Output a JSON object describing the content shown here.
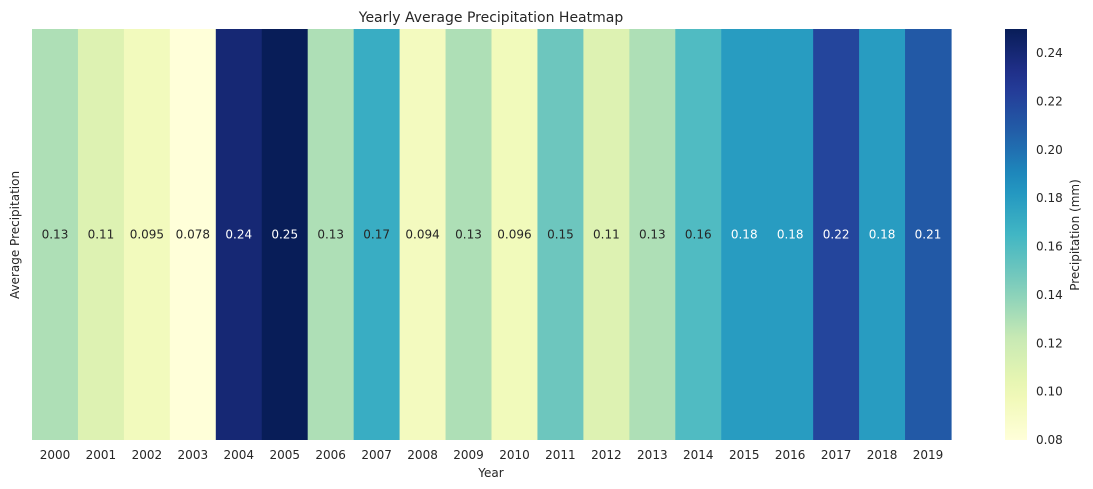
{
  "chart_data": {
    "type": "heatmap",
    "title": "Yearly Average Precipitation Heatmap",
    "xlabel": "Year",
    "ylabel": "Average Precipitation",
    "colorbar_label": "Precipitation (mm)",
    "colormap": "YlGnBu",
    "color_range": [
      0.08,
      0.25
    ],
    "colorbar_ticks": [
      "0.08",
      "0.10",
      "0.12",
      "0.14",
      "0.16",
      "0.18",
      "0.20",
      "0.22",
      "0.24"
    ],
    "categories": [
      "2000",
      "2001",
      "2002",
      "2003",
      "2004",
      "2005",
      "2006",
      "2007",
      "2008",
      "2009",
      "2010",
      "2011",
      "2012",
      "2013",
      "2014",
      "2015",
      "2016",
      "2017",
      "2018",
      "2019"
    ],
    "values": [
      0.13,
      0.11,
      0.095,
      0.078,
      0.24,
      0.25,
      0.13,
      0.17,
      0.094,
      0.13,
      0.096,
      0.15,
      0.11,
      0.13,
      0.16,
      0.18,
      0.18,
      0.22,
      0.18,
      0.21
    ],
    "cell_labels": [
      "0.13",
      "0.11",
      "0.095",
      "0.078",
      "0.24",
      "0.25",
      "0.13",
      "0.17",
      "0.094",
      "0.13",
      "0.096",
      "0.15",
      "0.11",
      "0.13",
      "0.16",
      "0.18",
      "0.18",
      "0.22",
      "0.18",
      "0.21"
    ]
  }
}
